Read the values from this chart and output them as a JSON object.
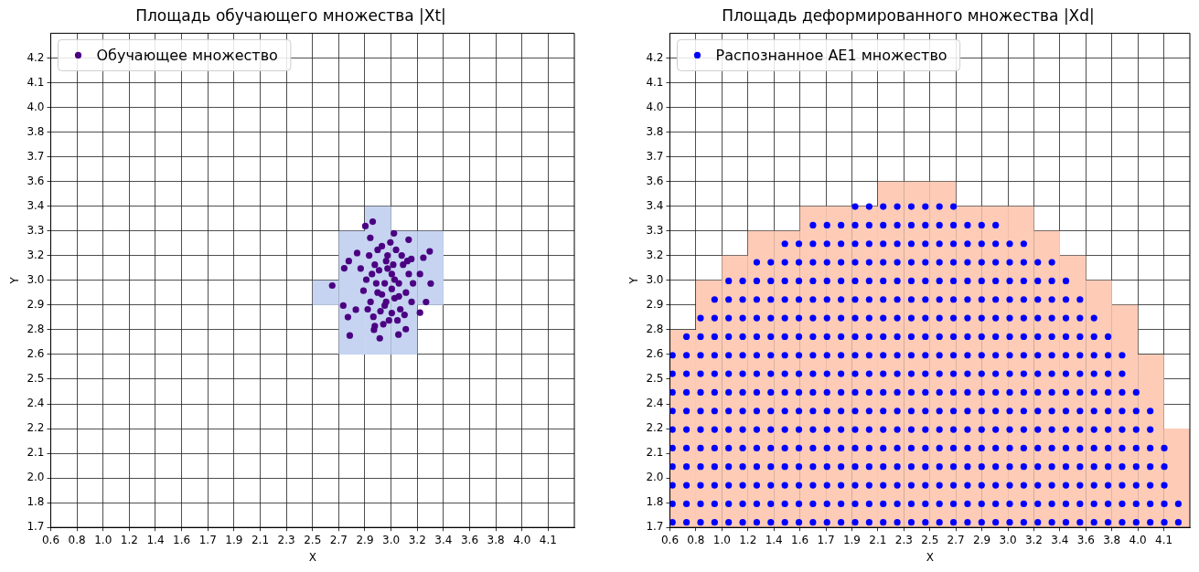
{
  "chart_data": [
    {
      "type": "scatter",
      "title": "Площадь обучающего множества |Xt|",
      "xlabel": "X",
      "ylabel": "Y",
      "xlim": [
        0.632,
        4.332
      ],
      "ylim": [
        1.703,
        4.363
      ],
      "xticks": [
        {
          "value": 0.632,
          "label": "0.6"
        },
        {
          "value": 0.817,
          "label": "0.8"
        },
        {
          "value": 1.002,
          "label": "1.0"
        },
        {
          "value": 1.187,
          "label": "1.2"
        },
        {
          "value": 1.372,
          "label": "1.4"
        },
        {
          "value": 1.557,
          "label": "1.6"
        },
        {
          "value": 1.742,
          "label": "1.7"
        },
        {
          "value": 1.927,
          "label": "1.9"
        },
        {
          "value": 2.112,
          "label": "2.1"
        },
        {
          "value": 2.297,
          "label": "2.3"
        },
        {
          "value": 2.482,
          "label": "2.5"
        },
        {
          "value": 2.667,
          "label": "2.7"
        },
        {
          "value": 2.852,
          "label": "2.9"
        },
        {
          "value": 3.037,
          "label": "3.0"
        },
        {
          "value": 3.222,
          "label": "3.2"
        },
        {
          "value": 3.407,
          "label": "3.4"
        },
        {
          "value": 3.592,
          "label": "3.6"
        },
        {
          "value": 3.777,
          "label": "3.8"
        },
        {
          "value": 3.962,
          "label": "4.0"
        },
        {
          "value": 4.147,
          "label": "4.1"
        }
      ],
      "yticks": [
        {
          "value": 1.703,
          "label": "1.7"
        },
        {
          "value": 1.836,
          "label": "1.8"
        },
        {
          "value": 1.969,
          "label": "2.0"
        },
        {
          "value": 2.102,
          "label": "2.1"
        },
        {
          "value": 2.235,
          "label": "2.2"
        },
        {
          "value": 2.368,
          "label": "2.4"
        },
        {
          "value": 2.501,
          "label": "2.5"
        },
        {
          "value": 2.634,
          "label": "2.6"
        },
        {
          "value": 2.767,
          "label": "2.8"
        },
        {
          "value": 2.9,
          "label": "2.9"
        },
        {
          "value": 3.033,
          "label": "3.0"
        },
        {
          "value": 3.166,
          "label": "3.2"
        },
        {
          "value": 3.299,
          "label": "3.3"
        },
        {
          "value": 3.432,
          "label": "3.4"
        },
        {
          "value": 3.565,
          "label": "3.6"
        },
        {
          "value": 3.698,
          "label": "3.7"
        },
        {
          "value": 3.831,
          "label": "3.8"
        },
        {
          "value": 3.964,
          "label": "4.0"
        },
        {
          "value": 4.097,
          "label": "4.1"
        },
        {
          "value": 4.23,
          "label": "4.2"
        }
      ],
      "grid": true,
      "legend": "top left",
      "marker": "circle",
      "series": [
        {
          "type": "bar",
          "color": "#c6d4f1",
          "x": [
            2.575,
            2.76,
            2.945,
            3.13,
            3.315
          ],
          "base": [
            2.9,
            2.634,
            2.634,
            2.634,
            2.9
          ],
          "values": [
            0.133,
            0.665,
            0.798,
            0.665,
            0.399
          ]
        },
        {
          "type": "scatter",
          "name": "Обучающее множество",
          "color": "#4b0082",
          "x": [
            2.855,
            2.907,
            3.057,
            3.31,
            3.265,
            3.317,
            2.621,
            2.699,
            2.732,
            2.745,
            2.957,
            3.089,
            3.284,
            3.241,
            2.706,
            2.738,
            2.797,
            3.161,
            3.18,
            2.89,
            2.916,
            3.141,
            2.788,
            3.241,
            2.992,
            2.942,
            3.042,
            2.922,
            3.062,
            3.012,
            2.892,
            3.092,
            2.962,
            3.122,
            3.022,
            2.862,
            3.142,
            2.972,
            3.072,
            2.912,
            3.102,
            3.002,
            2.952,
            3.042,
            2.882,
            3.162,
            2.982,
            3.082,
            2.932,
            3.052,
            3.032,
            2.842,
            3.182,
            2.902,
            3.112,
            2.992,
            3.132,
            2.872,
            3.012,
            3.062,
            2.942,
            3.152,
            2.972,
            3.092,
            2.922,
            3.042,
            2.822,
            3.192,
            3.002
          ],
          "values": [
            3.325,
            3.349,
            3.286,
            3.189,
            3.155,
            3.016,
            3.005,
            2.897,
            2.835,
            2.736,
            2.721,
            2.741,
            2.916,
            2.859,
            3.098,
            3.137,
            3.18,
            3.252,
            3.148,
            3.262,
            2.767,
            2.77,
            2.875,
            3.067,
            3.017,
            2.967,
            3.067,
            3.117,
            2.937,
            3.167,
            2.917,
            3.017,
            2.867,
            3.117,
            2.817,
            3.037,
            2.967,
            3.217,
            3.197,
            2.837,
            2.877,
            2.917,
            3.087,
            2.987,
            3.167,
            3.067,
            2.797,
            2.817,
            3.017,
            3.117,
            3.237,
            2.977,
            2.917,
            3.067,
            3.167,
            2.897,
            2.847,
            2.877,
            3.097,
            3.037,
            3.197,
            3.137,
            2.957,
            2.947,
            2.787,
            2.857,
            3.097,
            3.017,
            3.137
          ]
        }
      ]
    },
    {
      "type": "scatter",
      "title": "Площадь деформированного множества |Xd|",
      "xlabel": "X",
      "ylabel": "Y",
      "xlim": [
        0.632,
        4.332
      ],
      "ylim": [
        1.703,
        4.363
      ],
      "xticks": [
        {
          "value": 0.632,
          "label": "0.6"
        },
        {
          "value": 0.817,
          "label": "0.8"
        },
        {
          "value": 1.002,
          "label": "1.0"
        },
        {
          "value": 1.187,
          "label": "1.2"
        },
        {
          "value": 1.372,
          "label": "1.4"
        },
        {
          "value": 1.557,
          "label": "1.6"
        },
        {
          "value": 1.742,
          "label": "1.7"
        },
        {
          "value": 1.927,
          "label": "1.9"
        },
        {
          "value": 2.112,
          "label": "2.1"
        },
        {
          "value": 2.297,
          "label": "2.3"
        },
        {
          "value": 2.482,
          "label": "2.5"
        },
        {
          "value": 2.667,
          "label": "2.7"
        },
        {
          "value": 2.852,
          "label": "2.9"
        },
        {
          "value": 3.037,
          "label": "3.0"
        },
        {
          "value": 3.222,
          "label": "3.2"
        },
        {
          "value": 3.407,
          "label": "3.4"
        },
        {
          "value": 3.592,
          "label": "3.6"
        },
        {
          "value": 3.777,
          "label": "3.8"
        },
        {
          "value": 3.962,
          "label": "4.0"
        },
        {
          "value": 4.147,
          "label": "4.1"
        }
      ],
      "yticks": [
        {
          "value": 1.703,
          "label": "1.7"
        },
        {
          "value": 1.836,
          "label": "1.8"
        },
        {
          "value": 1.969,
          "label": "2.0"
        },
        {
          "value": 2.102,
          "label": "2.1"
        },
        {
          "value": 2.235,
          "label": "2.2"
        },
        {
          "value": 2.368,
          "label": "2.4"
        },
        {
          "value": 2.501,
          "label": "2.5"
        },
        {
          "value": 2.634,
          "label": "2.6"
        },
        {
          "value": 2.767,
          "label": "2.8"
        },
        {
          "value": 2.9,
          "label": "2.9"
        },
        {
          "value": 3.033,
          "label": "3.0"
        },
        {
          "value": 3.166,
          "label": "3.2"
        },
        {
          "value": 3.299,
          "label": "3.3"
        },
        {
          "value": 3.432,
          "label": "3.4"
        },
        {
          "value": 3.565,
          "label": "3.6"
        },
        {
          "value": 3.698,
          "label": "3.7"
        },
        {
          "value": 3.831,
          "label": "3.8"
        },
        {
          "value": 3.964,
          "label": "4.0"
        },
        {
          "value": 4.097,
          "label": "4.1"
        },
        {
          "value": 4.23,
          "label": "4.2"
        }
      ],
      "grid": true,
      "legend": "top left",
      "marker": "circle",
      "series": [
        {
          "type": "bar",
          "color": "#fdcbb6",
          "x": [
            0.725,
            0.91,
            1.095,
            1.28,
            1.465,
            1.65,
            1.835,
            2.02,
            2.205,
            2.39,
            2.575,
            2.76,
            2.945,
            3.13,
            3.315,
            3.5,
            3.685,
            3.87,
            4.055,
            4.24
          ],
          "base": [
            1.703,
            1.703,
            1.703,
            1.703,
            1.703,
            1.703,
            1.703,
            1.703,
            1.703,
            1.703,
            1.703,
            1.703,
            1.703,
            1.703,
            1.703,
            1.703,
            1.703,
            1.703,
            1.703,
            1.703
          ],
          "values": [
            1.064,
            1.33,
            1.463,
            1.596,
            1.596,
            1.729,
            1.729,
            1.729,
            1.862,
            1.862,
            1.862,
            1.729,
            1.729,
            1.729,
            1.596,
            1.463,
            1.33,
            1.197,
            0.931,
            0.532
          ]
        },
        {
          "type": "scatter",
          "name": "Распознанное AE1 множество",
          "color": "#0000ff",
          "x": [
            0.65,
            0.75,
            0.85,
            0.95,
            1.05,
            1.15,
            1.25,
            1.35,
            1.45,
            1.55,
            1.65,
            1.75,
            1.85,
            1.95,
            2.05,
            2.15,
            2.25,
            2.35,
            2.45,
            2.55,
            2.65,
            2.75,
            2.85,
            2.95,
            3.05,
            3.15,
            3.25,
            3.35,
            3.45,
            3.55,
            3.65,
            3.75,
            3.85,
            3.95,
            4.05,
            4.15,
            4.25,
            0.65,
            0.75,
            0.85,
            0.95,
            1.05,
            1.15,
            1.25,
            1.35,
            1.45,
            1.55,
            1.65,
            1.75,
            1.85,
            1.95,
            2.05,
            2.15,
            2.25,
            2.35,
            2.45,
            2.55,
            2.65,
            2.75,
            2.85,
            2.95,
            3.05,
            3.15,
            3.25,
            3.35,
            3.45,
            3.55,
            3.65,
            3.75,
            3.85,
            3.95,
            4.05,
            4.15,
            4.25,
            0.65,
            0.75,
            0.85,
            0.95,
            1.05,
            1.15,
            1.25,
            1.35,
            1.45,
            1.55,
            1.65,
            1.75,
            1.85,
            1.95,
            2.05,
            2.15,
            2.25,
            2.35,
            2.45,
            2.55,
            2.65,
            2.75,
            2.85,
            2.95,
            3.05,
            3.15,
            3.25,
            3.35,
            3.45,
            3.55,
            3.65,
            3.75,
            3.85,
            3.95,
            4.05,
            4.15,
            0.65,
            0.75,
            0.85,
            0.95,
            1.05,
            1.15,
            1.25,
            1.35,
            1.45,
            1.55,
            1.65,
            1.75,
            1.85,
            1.95,
            2.05,
            2.15,
            2.25,
            2.35,
            2.45,
            2.55,
            2.65,
            2.75,
            2.85,
            2.95,
            3.05,
            3.15,
            3.25,
            3.35,
            3.45,
            3.55,
            3.65,
            3.75,
            3.85,
            3.95,
            4.05,
            4.15,
            0.65,
            0.75,
            0.85,
            0.95,
            1.05,
            1.15,
            1.25,
            1.35,
            1.45,
            1.55,
            1.65,
            1.75,
            1.85,
            1.95,
            2.05,
            2.15,
            2.25,
            2.35,
            2.45,
            2.55,
            2.65,
            2.75,
            2.85,
            2.95,
            3.05,
            3.15,
            3.25,
            3.35,
            3.45,
            3.55,
            3.65,
            3.75,
            3.85,
            3.95,
            4.05,
            4.15,
            0.65,
            0.75,
            0.85,
            0.95,
            1.05,
            1.15,
            1.25,
            1.35,
            1.45,
            1.55,
            1.65,
            1.75,
            1.85,
            1.95,
            2.05,
            2.15,
            2.25,
            2.35,
            2.45,
            2.55,
            2.65,
            2.75,
            2.85,
            2.95,
            3.05,
            3.15,
            3.25,
            3.35,
            3.45,
            3.55,
            3.65,
            3.75,
            3.85,
            3.95,
            4.05,
            0.65,
            0.75,
            0.85,
            0.95,
            1.05,
            1.15,
            1.25,
            1.35,
            1.45,
            1.55,
            1.65,
            1.75,
            1.85,
            1.95,
            2.05,
            2.15,
            2.25,
            2.35,
            2.45,
            2.55,
            2.65,
            2.75,
            2.85,
            2.95,
            3.05,
            3.15,
            3.25,
            3.35,
            3.45,
            3.55,
            3.65,
            3.75,
            3.85,
            3.95,
            4.05,
            0.65,
            0.75,
            0.85,
            0.95,
            1.05,
            1.15,
            1.25,
            1.35,
            1.45,
            1.55,
            1.65,
            1.75,
            1.85,
            1.95,
            2.05,
            2.15,
            2.25,
            2.35,
            2.45,
            2.55,
            2.65,
            2.75,
            2.85,
            2.95,
            3.05,
            3.15,
            3.25,
            3.35,
            3.45,
            3.55,
            3.65,
            3.75,
            3.85,
            3.95,
            0.65,
            0.75,
            0.85,
            0.95,
            1.05,
            1.15,
            1.25,
            1.35,
            1.45,
            1.55,
            1.65,
            1.75,
            1.85,
            1.95,
            2.05,
            2.15,
            2.25,
            2.35,
            2.45,
            2.55,
            2.65,
            2.75,
            2.85,
            2.95,
            3.05,
            3.15,
            3.25,
            3.35,
            3.45,
            3.55,
            3.65,
            3.75,
            3.85,
            0.65,
            0.75,
            0.85,
            0.95,
            1.05,
            1.15,
            1.25,
            1.35,
            1.45,
            1.55,
            1.65,
            1.75,
            1.85,
            1.95,
            2.05,
            2.15,
            2.25,
            2.35,
            2.45,
            2.55,
            2.65,
            2.75,
            2.85,
            2.95,
            3.05,
            3.15,
            3.25,
            3.35,
            3.45,
            3.55,
            3.65,
            3.75,
            3.85,
            0.75,
            0.85,
            0.95,
            1.05,
            1.15,
            1.25,
            1.35,
            1.45,
            1.55,
            1.65,
            1.75,
            1.85,
            1.95,
            2.05,
            2.15,
            2.25,
            2.35,
            2.45,
            2.55,
            2.65,
            2.75,
            2.85,
            2.95,
            3.05,
            3.15,
            3.25,
            3.35,
            3.45,
            3.55,
            3.65,
            3.75,
            0.85,
            0.95,
            1.05,
            1.15,
            1.25,
            1.35,
            1.45,
            1.55,
            1.65,
            1.75,
            1.85,
            1.95,
            2.05,
            2.15,
            2.25,
            2.35,
            2.45,
            2.55,
            2.65,
            2.75,
            2.85,
            2.95,
            3.05,
            3.15,
            3.25,
            3.35,
            3.45,
            3.55,
            3.65,
            0.95,
            1.05,
            1.15,
            1.25,
            1.35,
            1.45,
            1.55,
            1.65,
            1.75,
            1.85,
            1.95,
            2.05,
            2.15,
            2.25,
            2.35,
            2.45,
            2.55,
            2.65,
            2.75,
            2.85,
            2.95,
            3.05,
            3.15,
            3.25,
            3.35,
            3.45,
            3.55,
            1.05,
            1.15,
            1.25,
            1.35,
            1.45,
            1.55,
            1.65,
            1.75,
            1.85,
            1.95,
            2.05,
            2.15,
            2.25,
            2.35,
            2.45,
            2.55,
            2.65,
            2.75,
            2.85,
            2.95,
            3.05,
            3.15,
            3.25,
            3.35,
            3.45,
            1.25,
            1.35,
            1.45,
            1.55,
            1.65,
            1.75,
            1.85,
            1.95,
            2.05,
            2.15,
            2.25,
            2.35,
            2.45,
            2.55,
            2.65,
            2.75,
            2.85,
            2.95,
            3.05,
            3.15,
            3.25,
            3.35,
            1.45,
            1.55,
            1.65,
            1.75,
            1.85,
            1.95,
            2.05,
            2.15,
            2.25,
            2.35,
            2.45,
            2.55,
            2.65,
            2.75,
            2.85,
            2.95,
            3.05,
            3.15,
            1.65,
            1.75,
            1.85,
            1.95,
            2.05,
            2.15,
            2.25,
            2.35,
            2.45,
            2.55,
            2.65,
            2.75,
            2.85,
            2.95,
            1.95,
            2.05,
            2.15,
            2.25,
            2.35,
            2.45,
            2.55,
            2.65
          ],
          "values": [
            1.73,
            1.73,
            1.73,
            1.73,
            1.73,
            1.73,
            1.73,
            1.73,
            1.73,
            1.73,
            1.73,
            1.73,
            1.73,
            1.73,
            1.73,
            1.73,
            1.73,
            1.73,
            1.73,
            1.73,
            1.73,
            1.73,
            1.73,
            1.73,
            1.73,
            1.73,
            1.73,
            1.73,
            1.73,
            1.73,
            1.73,
            1.73,
            1.73,
            1.73,
            1.73,
            1.73,
            1.73,
            1.83,
            1.83,
            1.83,
            1.83,
            1.83,
            1.83,
            1.83,
            1.83,
            1.83,
            1.83,
            1.83,
            1.83,
            1.83,
            1.83,
            1.83,
            1.83,
            1.83,
            1.83,
            1.83,
            1.83,
            1.83,
            1.83,
            1.83,
            1.83,
            1.83,
            1.83,
            1.83,
            1.83,
            1.83,
            1.83,
            1.83,
            1.83,
            1.83,
            1.83,
            1.83,
            1.83,
            1.83,
            1.93,
            1.93,
            1.93,
            1.93,
            1.93,
            1.93,
            1.93,
            1.93,
            1.93,
            1.93,
            1.93,
            1.93,
            1.93,
            1.93,
            1.93,
            1.93,
            1.93,
            1.93,
            1.93,
            1.93,
            1.93,
            1.93,
            1.93,
            1.93,
            1.93,
            1.93,
            1.93,
            1.93,
            1.93,
            1.93,
            1.93,
            1.93,
            1.93,
            1.93,
            1.93,
            1.93,
            2.03,
            2.03,
            2.03,
            2.03,
            2.03,
            2.03,
            2.03,
            2.03,
            2.03,
            2.03,
            2.03,
            2.03,
            2.03,
            2.03,
            2.03,
            2.03,
            2.03,
            2.03,
            2.03,
            2.03,
            2.03,
            2.03,
            2.03,
            2.03,
            2.03,
            2.03,
            2.03,
            2.03,
            2.03,
            2.03,
            2.03,
            2.03,
            2.03,
            2.03,
            2.03,
            2.03,
            2.13,
            2.13,
            2.13,
            2.13,
            2.13,
            2.13,
            2.13,
            2.13,
            2.13,
            2.13,
            2.13,
            2.13,
            2.13,
            2.13,
            2.13,
            2.13,
            2.13,
            2.13,
            2.13,
            2.13,
            2.13,
            2.13,
            2.13,
            2.13,
            2.13,
            2.13,
            2.13,
            2.13,
            2.13,
            2.13,
            2.13,
            2.13,
            2.13,
            2.13,
            2.13,
            2.13,
            2.23,
            2.23,
            2.23,
            2.23,
            2.23,
            2.23,
            2.23,
            2.23,
            2.23,
            2.23,
            2.23,
            2.23,
            2.23,
            2.23,
            2.23,
            2.23,
            2.23,
            2.23,
            2.23,
            2.23,
            2.23,
            2.23,
            2.23,
            2.23,
            2.23,
            2.23,
            2.23,
            2.23,
            2.23,
            2.23,
            2.23,
            2.23,
            2.23,
            2.23,
            2.23,
            2.33,
            2.33,
            2.33,
            2.33,
            2.33,
            2.33,
            2.33,
            2.33,
            2.33,
            2.33,
            2.33,
            2.33,
            2.33,
            2.33,
            2.33,
            2.33,
            2.33,
            2.33,
            2.33,
            2.33,
            2.33,
            2.33,
            2.33,
            2.33,
            2.33,
            2.33,
            2.33,
            2.33,
            2.33,
            2.33,
            2.33,
            2.33,
            2.33,
            2.33,
            2.33,
            2.43,
            2.43,
            2.43,
            2.43,
            2.43,
            2.43,
            2.43,
            2.43,
            2.43,
            2.43,
            2.43,
            2.43,
            2.43,
            2.43,
            2.43,
            2.43,
            2.43,
            2.43,
            2.43,
            2.43,
            2.43,
            2.43,
            2.43,
            2.43,
            2.43,
            2.43,
            2.43,
            2.43,
            2.43,
            2.43,
            2.43,
            2.43,
            2.43,
            2.43,
            2.53,
            2.53,
            2.53,
            2.53,
            2.53,
            2.53,
            2.53,
            2.53,
            2.53,
            2.53,
            2.53,
            2.53,
            2.53,
            2.53,
            2.53,
            2.53,
            2.53,
            2.53,
            2.53,
            2.53,
            2.53,
            2.53,
            2.53,
            2.53,
            2.53,
            2.53,
            2.53,
            2.53,
            2.53,
            2.53,
            2.53,
            2.53,
            2.53,
            2.63,
            2.63,
            2.63,
            2.63,
            2.63,
            2.63,
            2.63,
            2.63,
            2.63,
            2.63,
            2.63,
            2.63,
            2.63,
            2.63,
            2.63,
            2.63,
            2.63,
            2.63,
            2.63,
            2.63,
            2.63,
            2.63,
            2.63,
            2.63,
            2.63,
            2.63,
            2.63,
            2.63,
            2.63,
            2.63,
            2.63,
            2.63,
            2.63,
            2.73,
            2.73,
            2.73,
            2.73,
            2.73,
            2.73,
            2.73,
            2.73,
            2.73,
            2.73,
            2.73,
            2.73,
            2.73,
            2.73,
            2.73,
            2.73,
            2.73,
            2.73,
            2.73,
            2.73,
            2.73,
            2.73,
            2.73,
            2.73,
            2.73,
            2.73,
            2.73,
            2.73,
            2.73,
            2.73,
            2.73,
            2.83,
            2.83,
            2.83,
            2.83,
            2.83,
            2.83,
            2.83,
            2.83,
            2.83,
            2.83,
            2.83,
            2.83,
            2.83,
            2.83,
            2.83,
            2.83,
            2.83,
            2.83,
            2.83,
            2.83,
            2.83,
            2.83,
            2.83,
            2.83,
            2.83,
            2.83,
            2.83,
            2.83,
            2.83,
            2.93,
            2.93,
            2.93,
            2.93,
            2.93,
            2.93,
            2.93,
            2.93,
            2.93,
            2.93,
            2.93,
            2.93,
            2.93,
            2.93,
            2.93,
            2.93,
            2.93,
            2.93,
            2.93,
            2.93,
            2.93,
            2.93,
            2.93,
            2.93,
            2.93,
            2.93,
            2.93,
            3.03,
            3.03,
            3.03,
            3.03,
            3.03,
            3.03,
            3.03,
            3.03,
            3.03,
            3.03,
            3.03,
            3.03,
            3.03,
            3.03,
            3.03,
            3.03,
            3.03,
            3.03,
            3.03,
            3.03,
            3.03,
            3.03,
            3.03,
            3.03,
            3.03,
            3.13,
            3.13,
            3.13,
            3.13,
            3.13,
            3.13,
            3.13,
            3.13,
            3.13,
            3.13,
            3.13,
            3.13,
            3.13,
            3.13,
            3.13,
            3.13,
            3.13,
            3.13,
            3.13,
            3.13,
            3.13,
            3.13,
            3.23,
            3.23,
            3.23,
            3.23,
            3.23,
            3.23,
            3.23,
            3.23,
            3.23,
            3.23,
            3.23,
            3.23,
            3.23,
            3.23,
            3.23,
            3.23,
            3.23,
            3.23,
            3.33,
            3.33,
            3.33,
            3.33,
            3.33,
            3.33,
            3.33,
            3.33,
            3.33,
            3.33,
            3.33,
            3.33,
            3.33,
            3.33,
            3.43,
            3.43,
            3.43,
            3.43,
            3.43,
            3.43,
            3.43,
            3.43
          ]
        }
      ]
    }
  ]
}
